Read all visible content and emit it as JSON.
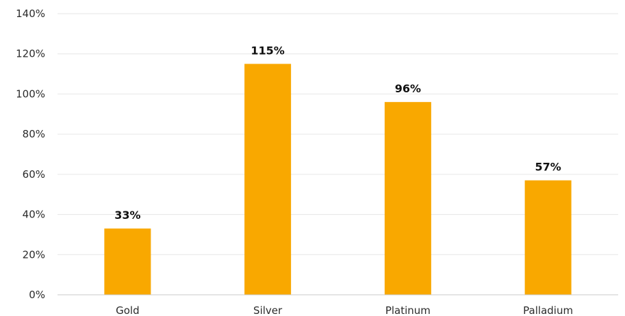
{
  "chart_data": {
    "type": "bar",
    "categories": [
      "Gold",
      "Silver",
      "Platinum",
      "Palladium"
    ],
    "values": [
      33,
      115,
      96,
      57
    ],
    "value_labels": [
      "33%",
      "115%",
      "96%",
      "57%"
    ],
    "title": "",
    "xlabel": "",
    "ylabel": "",
    "ylim": [
      0,
      140
    ],
    "y_ticks": [
      0,
      20,
      40,
      60,
      80,
      100,
      120,
      140
    ],
    "y_tick_labels": [
      "0%",
      "20%",
      "40%",
      "60%",
      "80%",
      "100%",
      "120%",
      "140%"
    ],
    "grid": true,
    "legend": "none",
    "colors": {
      "bar": "#F9A800",
      "grid": "#e6e6e6",
      "axis": "#c8c8c8",
      "text": "#2b2b2b",
      "label": "#111111"
    }
  }
}
